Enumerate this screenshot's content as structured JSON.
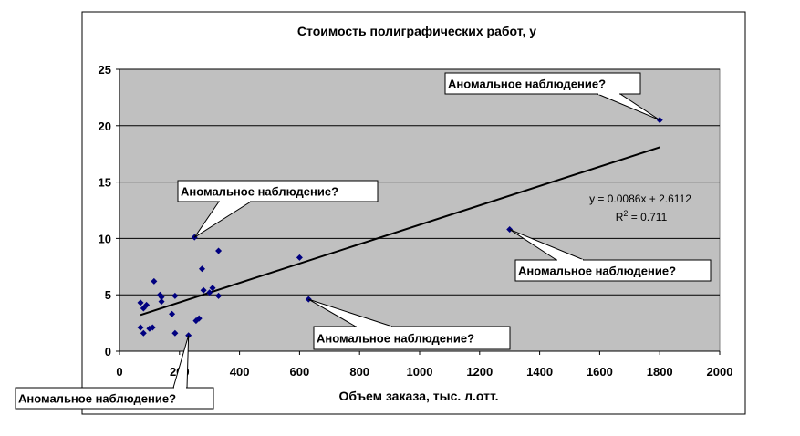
{
  "chart_data": {
    "type": "scatter",
    "title": "Стоимость полиграфических работ, y",
    "xlabel": "Объем заказа, тыс. л.отт.",
    "ylabel": "",
    "xlim": [
      0,
      2000
    ],
    "ylim": [
      0,
      25
    ],
    "x_ticks": [
      "0",
      "200",
      "400",
      "600",
      "800",
      "1000",
      "1200",
      "1400",
      "1600",
      "1800",
      "2000"
    ],
    "y_ticks": [
      "0",
      "5",
      "10",
      "15",
      "20",
      "25"
    ],
    "grid": "horizontal",
    "background": "#c0c0c0",
    "marker_color": "#000080",
    "points": [
      [
        70,
        4.3
      ],
      [
        70,
        2.1
      ],
      [
        80,
        3.8
      ],
      [
        80,
        1.6
      ],
      [
        90,
        4.1
      ],
      [
        100,
        2.0
      ],
      [
        110,
        2.1
      ],
      [
        115,
        6.2
      ],
      [
        135,
        5.0
      ],
      [
        140,
        4.4
      ],
      [
        140,
        4.8
      ],
      [
        175,
        3.3
      ],
      [
        185,
        4.9
      ],
      [
        185,
        1.6
      ],
      [
        230,
        1.4
      ],
      [
        250,
        10.1
      ],
      [
        255,
        2.7
      ],
      [
        265,
        2.9
      ],
      [
        275,
        7.3
      ],
      [
        280,
        5.4
      ],
      [
        300,
        5.2
      ],
      [
        310,
        5.6
      ],
      [
        330,
        8.9
      ],
      [
        330,
        4.9
      ],
      [
        600,
        8.3
      ],
      [
        630,
        4.6
      ],
      [
        1300,
        10.8
      ],
      [
        1800,
        20.5
      ]
    ],
    "trendline": {
      "slope": 0.0086,
      "intercept": 2.6112,
      "x_from": 70,
      "x_to": 1800,
      "color": "#000000"
    },
    "equation_line1": "y = 0.0086x + 2.6112",
    "r2_label": "R",
    "r2_superscript": "2",
    "r2_value": " = 0.711",
    "annotations": [
      {
        "text": "Аномальное наблюдение?",
        "x": 1800,
        "y": 20.5
      },
      {
        "text": "Аномальное наблюдение?",
        "x": 250,
        "y": 10.1
      },
      {
        "text": "Аномальное наблюдение?",
        "x": 1300,
        "y": 10.8
      },
      {
        "text": "Аномальное наблюдение?",
        "x": 630,
        "y": 4.6
      },
      {
        "text": "Аномальное наблюдение?",
        "x": 230,
        "y": 1.4
      }
    ]
  }
}
